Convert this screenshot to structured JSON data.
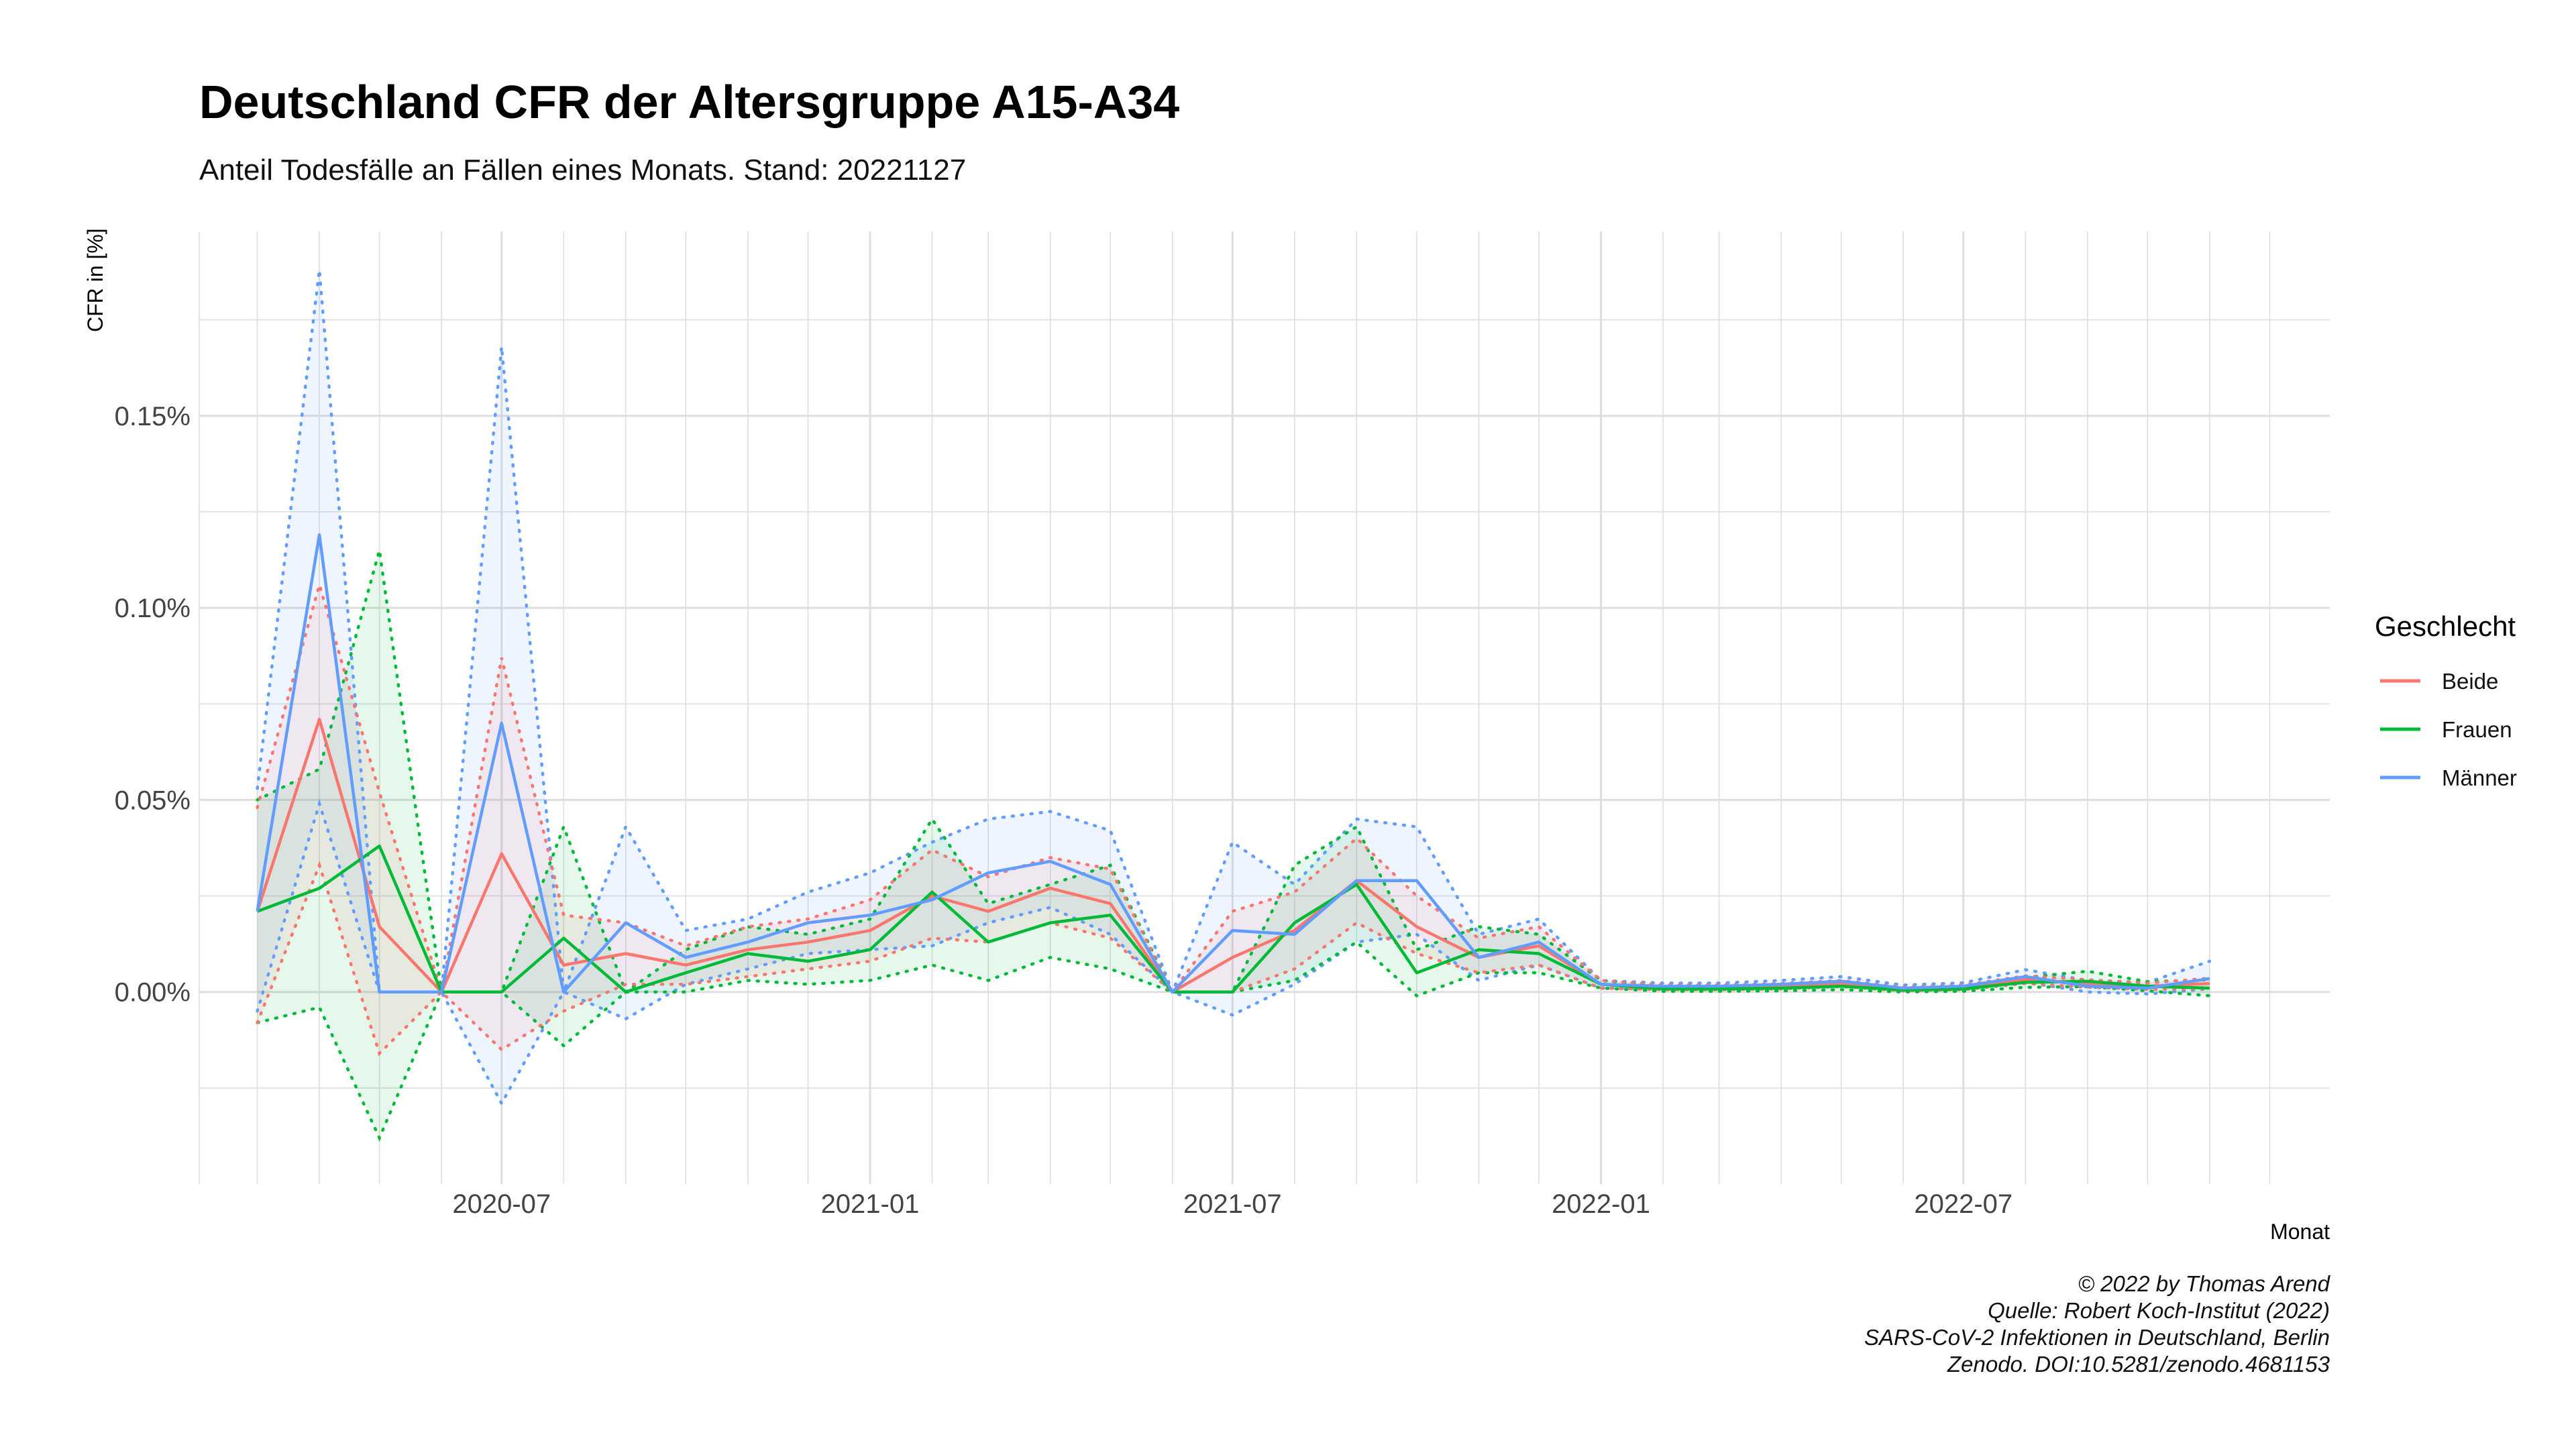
{
  "chart_data": {
    "type": "line",
    "title": "Deutschland CFR der Altersgruppe A15-A34",
    "subtitle": "Anteil Todesfälle an Fällen eines Monats. Stand: 20221127",
    "xlabel": "Monat",
    "ylabel": "CFR in [%]",
    "x": [
      "2020-03",
      "2020-04",
      "2020-05",
      "2020-06",
      "2020-07",
      "2020-08",
      "2020-09",
      "2020-10",
      "2020-11",
      "2020-12",
      "2021-01",
      "2021-02",
      "2021-03",
      "2021-04",
      "2021-05",
      "2021-06",
      "2021-07",
      "2021-08",
      "2021-09",
      "2021-10",
      "2021-11",
      "2021-12",
      "2022-01",
      "2022-02",
      "2022-03",
      "2022-04",
      "2022-05",
      "2022-06",
      "2022-07",
      "2022-08",
      "2022-09",
      "2022-10",
      "2022-11"
    ],
    "x_ticks": [
      "2020-07",
      "2021-01",
      "2021-07",
      "2022-01",
      "2022-07"
    ],
    "y_ticks": [
      0,
      0.05,
      0.1,
      0.15
    ],
    "y_tick_labels": [
      "0.00%",
      "0.05%",
      "0.10%",
      "0.15%"
    ],
    "ylim": [
      -0.05,
      0.198
    ],
    "grid": true,
    "legend": {
      "title": "Geschlecht",
      "position": "right"
    },
    "series": [
      {
        "name": "Beide",
        "color": "#f8766d",
        "values": [
          0.021,
          0.071,
          0.017,
          0.0,
          0.036,
          0.007,
          0.01,
          0.007,
          0.011,
          0.013,
          0.016,
          0.025,
          0.021,
          0.027,
          0.023,
          0.0,
          0.009,
          0.016,
          0.029,
          0.017,
          0.009,
          0.012,
          0.002,
          0.0012,
          0.0012,
          0.0015,
          0.0022,
          0.0008,
          0.0012,
          0.0032,
          0.0022,
          0.0015,
          0.0022
        ],
        "lower": [
          -0.008,
          0.033,
          -0.016,
          0.0,
          -0.015,
          -0.005,
          0.002,
          0.002,
          0.004,
          0.006,
          0.008,
          0.014,
          0.013,
          0.018,
          0.014,
          0.0,
          0.0,
          0.006,
          0.018,
          0.01,
          0.005,
          0.007,
          0.001,
          0.0006,
          0.0006,
          0.0008,
          0.0014,
          0.0003,
          0.0006,
          0.0022,
          0.0012,
          0.0007,
          0.0008
        ],
        "upper": [
          0.048,
          0.106,
          0.052,
          0.0,
          0.087,
          0.02,
          0.018,
          0.012,
          0.017,
          0.019,
          0.024,
          0.037,
          0.03,
          0.035,
          0.032,
          0.0,
          0.021,
          0.026,
          0.04,
          0.025,
          0.014,
          0.017,
          0.003,
          0.0018,
          0.0018,
          0.0022,
          0.003,
          0.0013,
          0.0018,
          0.0042,
          0.0032,
          0.0023,
          0.0036
        ]
      },
      {
        "name": "Frauen",
        "color": "#00ba38",
        "values": [
          0.021,
          0.027,
          0.038,
          0.0,
          0.0,
          0.014,
          0.0,
          0.005,
          0.01,
          0.008,
          0.011,
          0.026,
          0.013,
          0.018,
          0.02,
          0.0,
          0.0,
          0.018,
          0.028,
          0.005,
          0.011,
          0.01,
          0.002,
          0.0008,
          0.0008,
          0.001,
          0.0015,
          0.0005,
          0.0008,
          0.0025,
          0.0028,
          0.0015,
          0.001
        ],
        "lower": [
          -0.008,
          -0.004,
          -0.038,
          0.0,
          0.0,
          -0.014,
          0.0,
          0.0,
          0.003,
          0.002,
          0.003,
          0.007,
          0.003,
          0.009,
          0.006,
          0.0,
          0.0,
          0.003,
          0.013,
          -0.001,
          0.005,
          0.005,
          0.001,
          0.0002,
          0.0002,
          0.0003,
          0.0006,
          0.0,
          0.0002,
          0.0012,
          0.0014,
          0.0003,
          -0.001
        ],
        "upper": [
          0.05,
          0.058,
          0.115,
          0.0,
          0.0,
          0.043,
          0.0,
          0.011,
          0.017,
          0.015,
          0.019,
          0.045,
          0.023,
          0.028,
          0.033,
          0.0,
          0.0,
          0.033,
          0.043,
          0.011,
          0.017,
          0.015,
          0.003,
          0.0014,
          0.0014,
          0.0017,
          0.0024,
          0.001,
          0.0014,
          0.0038,
          0.0054,
          0.0027,
          0.0032
        ]
      },
      {
        "name": "Männer",
        "color": "#619cff",
        "values": [
          0.021,
          0.119,
          0.0,
          0.0,
          0.07,
          0.0,
          0.018,
          0.009,
          0.013,
          0.018,
          0.02,
          0.024,
          0.031,
          0.034,
          0.028,
          0.0,
          0.016,
          0.015,
          0.029,
          0.029,
          0.009,
          0.013,
          0.002,
          0.0015,
          0.0015,
          0.002,
          0.0028,
          0.001,
          0.0015,
          0.004,
          0.0015,
          0.001,
          0.0035
        ],
        "lower": [
          -0.005,
          0.049,
          0.0,
          0.0,
          -0.029,
          0.0,
          -0.007,
          0.002,
          0.006,
          0.01,
          0.011,
          0.012,
          0.018,
          0.022,
          0.015,
          0.0,
          -0.006,
          0.002,
          0.013,
          0.015,
          0.003,
          0.007,
          0.001,
          0.0007,
          0.0007,
          0.001,
          0.0017,
          0.0003,
          0.0007,
          0.0025,
          0.0,
          -0.0005,
          0.0008
        ],
        "upper": [
          0.053,
          0.188,
          0.0,
          0.0,
          0.168,
          0.0,
          0.043,
          0.016,
          0.019,
          0.026,
          0.031,
          0.039,
          0.045,
          0.047,
          0.042,
          0.0,
          0.039,
          0.028,
          0.045,
          0.043,
          0.015,
          0.019,
          0.003,
          0.0023,
          0.0023,
          0.003,
          0.004,
          0.0018,
          0.0024,
          0.0058,
          0.003,
          0.0025,
          0.008
        ]
      }
    ]
  },
  "caption": {
    "lines": [
      "© 2022 by Thomas Arend",
      "Quelle: Robert Koch-Institut (2022)",
      "SARS-CoV-2 Infektionen in Deutschland, Berlin",
      "Zenodo. DOI:10.5281/zenodo.4681153"
    ]
  }
}
